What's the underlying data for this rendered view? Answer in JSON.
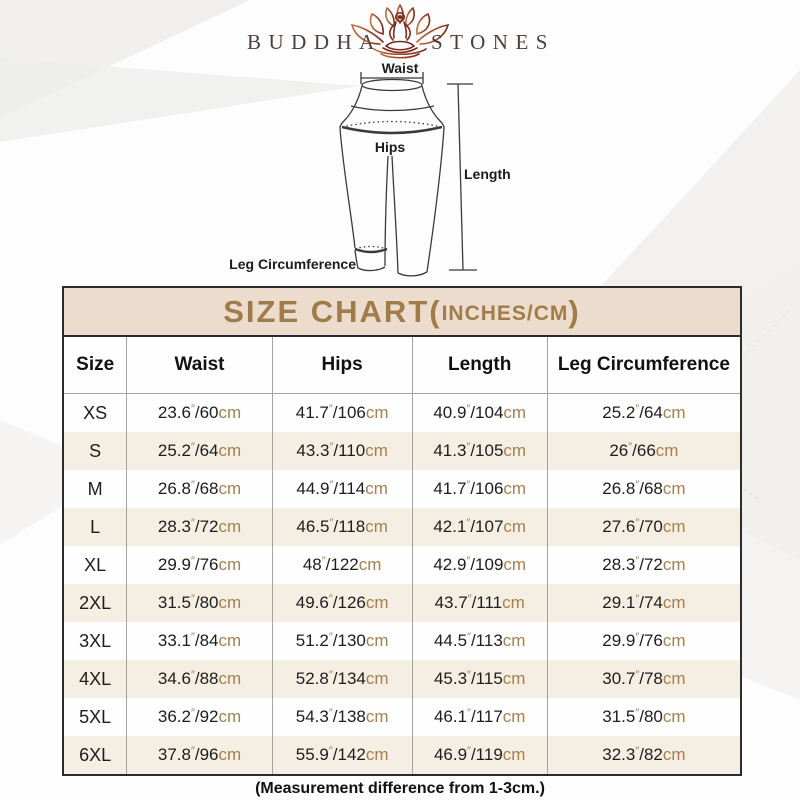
{
  "logo": {
    "left": "BUDDHA",
    "right": "STONES",
    "icon": "lotus-meditation-icon"
  },
  "diagram": {
    "waist_label": "Waist",
    "hips_label": "Hips",
    "length_label": "Length",
    "leg_label": "Leg Circumference"
  },
  "size_chart": {
    "title_main": "SIZE CHART(",
    "title_unit": "INCHES/CM",
    "title_close": ")",
    "columns": [
      "Size",
      "Waist",
      "Hips",
      "Length",
      "Leg Circumference"
    ],
    "rows": [
      {
        "size": "XS",
        "waist": {
          "in": "23.6",
          "cm": "60"
        },
        "hips": {
          "in": "41.7",
          "cm": "106"
        },
        "length": {
          "in": "40.9",
          "cm": "104"
        },
        "leg": {
          "in": "25.2",
          "cm": "64"
        }
      },
      {
        "size": "S",
        "waist": {
          "in": "25.2",
          "cm": "64"
        },
        "hips": {
          "in": "43.3",
          "cm": "110"
        },
        "length": {
          "in": "41.3",
          "cm": "105"
        },
        "leg": {
          "in": "26",
          "cm": "66"
        }
      },
      {
        "size": "M",
        "waist": {
          "in": "26.8",
          "cm": "68"
        },
        "hips": {
          "in": "44.9",
          "cm": "114"
        },
        "length": {
          "in": "41.7",
          "cm": "106"
        },
        "leg": {
          "in": "26.8",
          "cm": "68"
        }
      },
      {
        "size": "L",
        "waist": {
          "in": "28.3",
          "cm": "72"
        },
        "hips": {
          "in": "46.5",
          "cm": "118"
        },
        "length": {
          "in": "42.1",
          "cm": "107"
        },
        "leg": {
          "in": "27.6",
          "cm": "70"
        }
      },
      {
        "size": "XL",
        "waist": {
          "in": "29.9",
          "cm": "76"
        },
        "hips": {
          "in": "48",
          "cm": "122"
        },
        "length": {
          "in": "42.9",
          "cm": "109"
        },
        "leg": {
          "in": "28.3",
          "cm": "72"
        }
      },
      {
        "size": "2XL",
        "waist": {
          "in": "31.5",
          "cm": "80"
        },
        "hips": {
          "in": "49.6",
          "cm": "126"
        },
        "length": {
          "in": "43.7",
          "cm": "111"
        },
        "leg": {
          "in": "29.1",
          "cm": "74"
        }
      },
      {
        "size": "3XL",
        "waist": {
          "in": "33.1",
          "cm": "84"
        },
        "hips": {
          "in": "51.2",
          "cm": "130"
        },
        "length": {
          "in": "44.5",
          "cm": "113"
        },
        "leg": {
          "in": "29.9",
          "cm": "76"
        }
      },
      {
        "size": "4XL",
        "waist": {
          "in": "34.6",
          "cm": "88"
        },
        "hips": {
          "in": "52.8",
          "cm": "134"
        },
        "length": {
          "in": "45.3",
          "cm": "115"
        },
        "leg": {
          "in": "30.7",
          "cm": "78"
        }
      },
      {
        "size": "5XL",
        "waist": {
          "in": "36.2",
          "cm": "92"
        },
        "hips": {
          "in": "54.3",
          "cm": "138"
        },
        "length": {
          "in": "46.1",
          "cm": "117"
        },
        "leg": {
          "in": "31.5",
          "cm": "80"
        }
      },
      {
        "size": "6XL",
        "waist": {
          "in": "37.8",
          "cm": "96"
        },
        "hips": {
          "in": "55.9",
          "cm": "142"
        },
        "length": {
          "in": "46.9",
          "cm": "119"
        },
        "leg": {
          "in": "32.3",
          "cm": "82"
        }
      }
    ],
    "footnote": "(Measurement difference from 1-3cm.)"
  },
  "colors": {
    "title_text": "#a07c4b",
    "title_bar_bg": "#ecdccd",
    "row_alt_bg": "#f4eee3",
    "unit_text": "#a6804f",
    "logo_text": "#4d3e37",
    "lotus_dark": "#7c2a1f",
    "outer_border": "#2c2c2c"
  }
}
